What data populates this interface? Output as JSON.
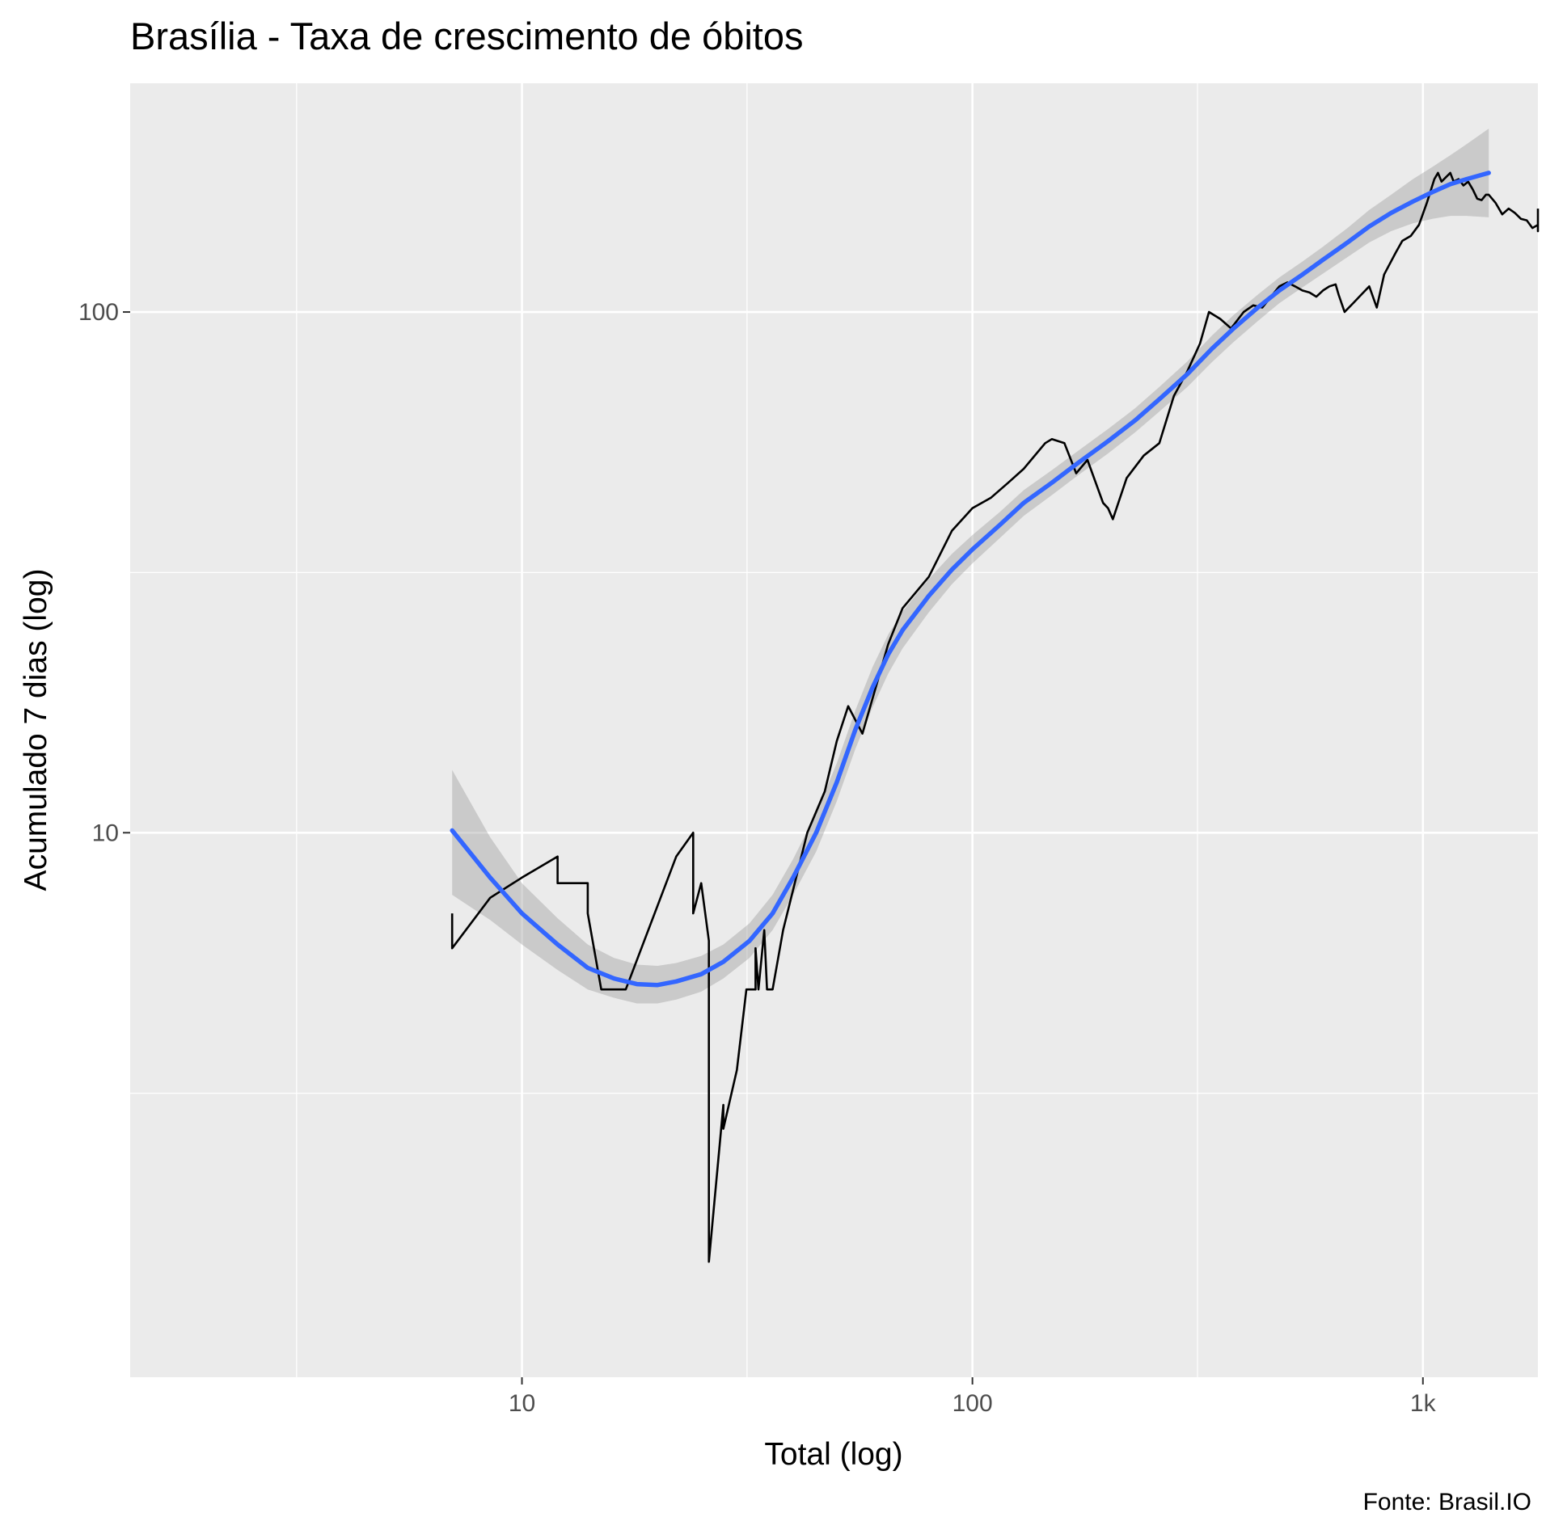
{
  "chart_data": {
    "type": "line",
    "title": "Brasília - Taxa de crescimento de óbitos",
    "xlabel": "Total (log)",
    "ylabel": "Acumulado 7 dias (log)",
    "caption": "Fonte: Brasil.IO",
    "x_scale": "log10",
    "y_scale": "log10",
    "xlim": [
      1.35,
      1800
    ],
    "ylim": [
      0.9,
      275
    ],
    "x_ticks": [
      {
        "value": 10,
        "label": "10"
      },
      {
        "value": 100,
        "label": "100"
      },
      {
        "value": 1000,
        "label": "1k"
      }
    ],
    "y_ticks": [
      {
        "value": 10,
        "label": "10"
      },
      {
        "value": 100,
        "label": "100"
      }
    ],
    "x_minor_ticks": [
      3.16,
      31.6,
      316
    ],
    "y_minor_ticks": [
      3.16,
      31.6
    ],
    "grid": true,
    "background": "#ebebeb",
    "series": [
      {
        "kind": "line",
        "color": "#000000",
        "values": [
          [
            7,
            7
          ],
          [
            7,
            6
          ],
          [
            8.5,
            7.5
          ],
          [
            10,
            8.2
          ],
          [
            12,
            9
          ],
          [
            12,
            8
          ],
          [
            13.5,
            8
          ],
          [
            14,
            8
          ],
          [
            14,
            7
          ],
          [
            15,
            5
          ],
          [
            16.5,
            5
          ],
          [
            17,
            5
          ],
          [
            22,
            9
          ],
          [
            24,
            10
          ],
          [
            24,
            7
          ],
          [
            25,
            8
          ],
          [
            26,
            6.2
          ],
          [
            26,
            1.5
          ],
          [
            28,
            3
          ],
          [
            28,
            2.7
          ],
          [
            30,
            3.5
          ],
          [
            31.5,
            5
          ],
          [
            33,
            5
          ],
          [
            33,
            6
          ],
          [
            33.5,
            5
          ],
          [
            34.5,
            6.5
          ],
          [
            35,
            5
          ],
          [
            36,
            5
          ],
          [
            38,
            6.5
          ],
          [
            43,
            10
          ],
          [
            47,
            12
          ],
          [
            50,
            15
          ],
          [
            53,
            17.5
          ],
          [
            57,
            15.5
          ],
          [
            65,
            23
          ],
          [
            70,
            27
          ],
          [
            80,
            31
          ],
          [
            90,
            38
          ],
          [
            100,
            42
          ],
          [
            110,
            44
          ],
          [
            120,
            47
          ],
          [
            130,
            50
          ],
          [
            145,
            56
          ],
          [
            150,
            57
          ],
          [
            160,
            56
          ],
          [
            170,
            49
          ],
          [
            180,
            52
          ],
          [
            195,
            43
          ],
          [
            200,
            42
          ],
          [
            205,
            40
          ],
          [
            220,
            48
          ],
          [
            240,
            53
          ],
          [
            260,
            56
          ],
          [
            280,
            69
          ],
          [
            300,
            77
          ],
          [
            320,
            87
          ],
          [
            335,
            100
          ],
          [
            355,
            97
          ],
          [
            375,
            93
          ],
          [
            400,
            100
          ],
          [
            420,
            103
          ],
          [
            440,
            102
          ],
          [
            460,
            107
          ],
          [
            480,
            112
          ],
          [
            500,
            114
          ],
          [
            520,
            112
          ],
          [
            540,
            110
          ],
          [
            560,
            109
          ],
          [
            580,
            107
          ],
          [
            600,
            110
          ],
          [
            620,
            112
          ],
          [
            640,
            113
          ],
          [
            650,
            108
          ],
          [
            670,
            100
          ],
          [
            700,
            104
          ],
          [
            730,
            108
          ],
          [
            760,
            112
          ],
          [
            790,
            102
          ],
          [
            820,
            118
          ],
          [
            870,
            130
          ],
          [
            900,
            137
          ],
          [
            940,
            140
          ],
          [
            980,
            147
          ],
          [
            1020,
            162
          ],
          [
            1060,
            180
          ],
          [
            1080,
            185
          ],
          [
            1100,
            178
          ],
          [
            1150,
            185
          ],
          [
            1170,
            178
          ],
          [
            1200,
            180
          ],
          [
            1230,
            175
          ],
          [
            1260,
            178
          ],
          [
            1290,
            172
          ],
          [
            1320,
            165
          ],
          [
            1350,
            164
          ],
          [
            1380,
            168
          ],
          [
            1400,
            168
          ],
          [
            1450,
            162
          ],
          [
            1500,
            154
          ],
          [
            1550,
            158
          ],
          [
            1600,
            155
          ],
          [
            1650,
            151
          ],
          [
            1700,
            150
          ],
          [
            1750,
            145
          ],
          [
            1800,
            147
          ],
          [
            1820,
            146
          ],
          [
            1830,
            143
          ],
          [
            1840,
            145
          ],
          [
            1860,
            148
          ],
          [
            1880,
            150
          ],
          [
            1900,
            151
          ],
          [
            1920,
            153
          ],
          [
            1940,
            152
          ],
          [
            1960,
            153
          ],
          [
            1980,
            156
          ],
          [
            2000,
            158
          ]
        ]
      },
      {
        "kind": "smooth",
        "color": "#3366ff",
        "band_color": "#999999",
        "values": [
          [
            7,
            10.1
          ],
          [
            8.5,
            8.2
          ],
          [
            10,
            7
          ],
          [
            12,
            6.1
          ],
          [
            14,
            5.5
          ],
          [
            16,
            5.25
          ],
          [
            18,
            5.12
          ],
          [
            20,
            5.1
          ],
          [
            22,
            5.18
          ],
          [
            25,
            5.35
          ],
          [
            28,
            5.65
          ],
          [
            32,
            6.2
          ],
          [
            36,
            7
          ],
          [
            40,
            8.2
          ],
          [
            45,
            10
          ],
          [
            50,
            12.5
          ],
          [
            55,
            15.8
          ],
          [
            60,
            19
          ],
          [
            65,
            22
          ],
          [
            70,
            24.5
          ],
          [
            80,
            28.5
          ],
          [
            90,
            32
          ],
          [
            100,
            35
          ],
          [
            115,
            39
          ],
          [
            130,
            43
          ],
          [
            150,
            47
          ],
          [
            170,
            51
          ],
          [
            200,
            56.5
          ],
          [
            230,
            62
          ],
          [
            260,
            68
          ],
          [
            300,
            76
          ],
          [
            340,
            85
          ],
          [
            380,
            93
          ],
          [
            430,
            102
          ],
          [
            480,
            110
          ],
          [
            540,
            118
          ],
          [
            600,
            126
          ],
          [
            680,
            136
          ],
          [
            760,
            146
          ],
          [
            850,
            155
          ],
          [
            950,
            163
          ],
          [
            1050,
            170
          ],
          [
            1150,
            176
          ],
          [
            1250,
            180
          ],
          [
            1400,
            185
          ]
        ],
        "band": [
          [
            7,
            7.6,
            13.2
          ],
          [
            8.5,
            6.8,
            9.8
          ],
          [
            10,
            6.1,
            8
          ],
          [
            12,
            5.45,
            6.85
          ],
          [
            14,
            5.0,
            6.1
          ],
          [
            16,
            4.82,
            5.75
          ],
          [
            18,
            4.7,
            5.58
          ],
          [
            20,
            4.7,
            5.55
          ],
          [
            22,
            4.78,
            5.62
          ],
          [
            25,
            4.95,
            5.8
          ],
          [
            28,
            5.25,
            6.1
          ],
          [
            32,
            5.75,
            6.7
          ],
          [
            36,
            6.5,
            7.6
          ],
          [
            40,
            7.6,
            8.9
          ],
          [
            45,
            9.2,
            10.9
          ],
          [
            50,
            11.5,
            13.6
          ],
          [
            55,
            14.5,
            17.2
          ],
          [
            60,
            17.4,
            20.8
          ],
          [
            65,
            20.2,
            24
          ],
          [
            70,
            22.6,
            26.6
          ],
          [
            80,
            26.5,
            30.7
          ],
          [
            90,
            30,
            34.3
          ],
          [
            100,
            32.9,
            37.3
          ],
          [
            115,
            36.8,
            41.3
          ],
          [
            130,
            40.6,
            45.5
          ],
          [
            150,
            44.5,
            49.7
          ],
          [
            170,
            48.3,
            53.8
          ],
          [
            200,
            53.5,
            59.6
          ],
          [
            230,
            58.8,
            65.4
          ],
          [
            260,
            64.4,
            71.8
          ],
          [
            300,
            71.8,
            80.4
          ],
          [
            340,
            80.1,
            90.1
          ],
          [
            380,
            87.6,
            98.7
          ],
          [
            430,
            96.1,
            108
          ],
          [
            480,
            104,
            116.5
          ],
          [
            540,
            111.5,
            125
          ],
          [
            600,
            118.5,
            133.5
          ],
          [
            680,
            127.5,
            145
          ],
          [
            760,
            136,
            157
          ],
          [
            850,
            143,
            168
          ],
          [
            950,
            148,
            180
          ],
          [
            1050,
            151,
            190
          ],
          [
            1150,
            153,
            200
          ],
          [
            1250,
            153,
            210
          ],
          [
            1400,
            152,
            225
          ]
        ]
      }
    ]
  }
}
